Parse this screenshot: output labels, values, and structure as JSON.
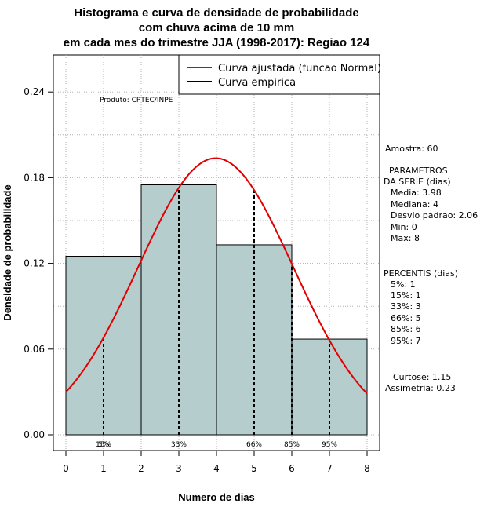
{
  "chart_data": {
    "type": "bar",
    "title_lines": [
      "Histograma e curva de densidade de probabilidade",
      "com chuva acima de 10 mm",
      "em cada mes do trimestre JJA (1998-2017): Regiao 124"
    ],
    "xlabel": "Numero de dias",
    "ylabel": "Densidade de probabilidade",
    "xlim": [
      0,
      8
    ],
    "ylim": [
      0,
      0.26
    ],
    "x_ticks": [
      "0",
      "1",
      "2",
      "3",
      "4",
      "5",
      "6",
      "7",
      "8"
    ],
    "y_ticks": [
      "0.00",
      "0.06",
      "0.12",
      "0.18",
      "0.24"
    ],
    "grid": true,
    "legend_position": "top-right",
    "bins": [
      {
        "from": 0,
        "to": 2,
        "density": 0.125
      },
      {
        "from": 2,
        "to": 4,
        "density": 0.175
      },
      {
        "from": 4,
        "to": 6,
        "density": 0.133
      },
      {
        "from": 6,
        "to": 8,
        "density": 0.067
      }
    ],
    "normal_fit": {
      "mean": 3.98,
      "sd": 2.06
    },
    "series": [
      {
        "name": "Curva ajustada (funcao Normal)",
        "color": "#e00000"
      },
      {
        "name": "Curva empirica",
        "color": "#000000"
      }
    ],
    "percentile_lines": [
      {
        "x": 1,
        "label": "5%"
      },
      {
        "x": 1,
        "label": "15%"
      },
      {
        "x": 3,
        "label": "33%"
      },
      {
        "x": 5,
        "label": "66%"
      },
      {
        "x": 6,
        "label": "85%"
      },
      {
        "x": 7,
        "label": "95%"
      }
    ],
    "annotation": "Produto: CPTEC/INPE",
    "colors": {
      "bars": "#b5cdcd",
      "fit_curve": "#e00000",
      "grid": "#b0b0b0"
    }
  },
  "stats_panel": {
    "sample": "Amostra: 60",
    "params_header_1": "PARAMETROS",
    "params_header_2": "DA SERIE (dias)",
    "params": [
      "Media: 3.98",
      "Mediana: 4",
      "Desvio padrao: 2.06",
      "Min: 0",
      "Max: 8"
    ],
    "percentis_header": "PERCENTIS (dias)",
    "percentis": [
      "5%: 1",
      "15%: 1",
      "33%: 3",
      "66%: 5",
      "85%: 6",
      "95%: 7"
    ],
    "curtose": "Curtose: 1.15",
    "assimetria": "Assimetria: 0.23"
  }
}
